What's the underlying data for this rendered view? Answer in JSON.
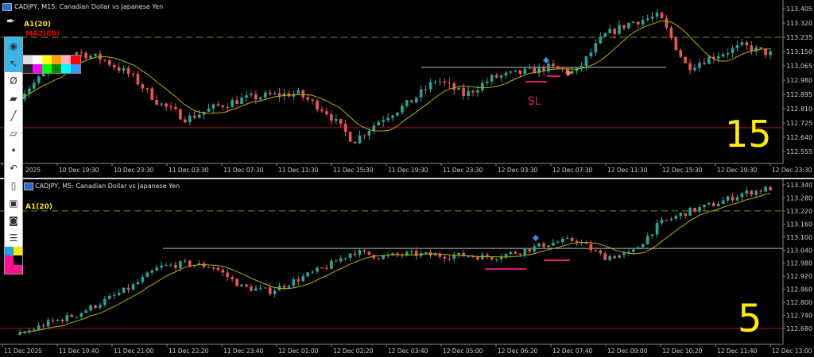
{
  "top_chart": {
    "title": "CADJPY, M15:  Canadian Dollar vs Japanese Yen",
    "indicators": [
      "A1(20)",
      "MA2(80)"
    ],
    "price_ticks": [
      "113.405",
      "113.320",
      "113.235",
      "113.150",
      "113.065",
      "112.980",
      "112.895",
      "112.810",
      "112.725",
      "112.640",
      "112.555"
    ],
    "time_ticks": [
      "2025",
      "10 Dec 19:30",
      "10 Dec 23:30",
      "11 Dec 03:30",
      "11 Dec 07:30",
      "11 Dec 11:30",
      "11 Dec 15:30",
      "11 Dec 19:30",
      "11 Dec 23:30",
      "12 Dec 03:30",
      "12 Dec 07:30",
      "12 Dec 11:30",
      "12 Dec 15:30",
      "12 Dec 19:30",
      "12 Dec 23:30"
    ],
    "annotations": {
      "sl": "SL",
      "timeframe": "15"
    }
  },
  "bottom_chart": {
    "title": "CADJPY, M5:  Canadian Dollar vs Japanese Yen",
    "indicators": [
      "A1(20)"
    ],
    "price_ticks": [
      "113.340",
      "113.280",
      "113.220",
      "113.160",
      "113.100",
      "113.040",
      "112.980",
      "112.920",
      "112.860",
      "112.800",
      "112.740",
      "112.680"
    ],
    "time_ticks": [
      "11 Dec 2025",
      "11 Dec 19:40",
      "11 Dec 21:00",
      "11 Dec 22:20",
      "11 Dec 23:40",
      "12 Dec 01:00",
      "12 Dec 02:20",
      "12 Dec 03:40",
      "12 Dec 05:00",
      "12 Dec 06:20",
      "12 Dec 07:40",
      "12 Dec 09:00",
      "12 Dec 10:20",
      "12 Dec 11:40",
      "12 Dec 13:00"
    ],
    "annotations": {
      "timeframe": "5"
    }
  },
  "toolbar": {
    "icons": [
      "pen-icon",
      "eye-icon",
      "cursor-icon",
      "crossout-icon",
      "eraser-icon",
      "line-icon",
      "rectangle-icon",
      "dot-icon",
      "undo-icon",
      "trash-icon",
      "screen-icon",
      "camera-icon",
      "clipboard-icon"
    ]
  },
  "colors": {
    "bull": "#26a69a",
    "bear": "#ef5350",
    "ma": "#b8b000",
    "dashed": "#8a8a00",
    "support": "#b01010",
    "hline": "#bbbbbb",
    "annotation": "#e0157a",
    "handwriting": "#ffee00"
  },
  "chart_data": [
    {
      "type": "candlestick",
      "symbol": "CADJPY",
      "timeframe": "M15",
      "ylim": [
        112.5,
        113.43
      ],
      "close_path": [
        112.89,
        113.032,
        113.15,
        113.103,
        113.008,
        112.843,
        112.749,
        112.819,
        112.867,
        112.89,
        112.9,
        112.796,
        112.616,
        112.749,
        112.843,
        112.985,
        112.89,
        112.994,
        113.023,
        113.056,
        113.023,
        113.244,
        113.325,
        113.362,
        113.056,
        113.126,
        113.183,
        113.136
      ],
      "levels": {
        "dashed": 113.235,
        "red": 112.697,
        "white": 113.056
      }
    },
    {
      "type": "candlestick",
      "symbol": "CADJPY",
      "timeframe": "M5",
      "ylim": [
        112.64,
        113.36
      ],
      "close_path": [
        112.651,
        112.705,
        112.742,
        112.804,
        112.87,
        112.961,
        112.979,
        112.961,
        112.87,
        112.851,
        112.906,
        112.961,
        113.034,
        113.008,
        113.023,
        113.015,
        113.015,
        113.008,
        113.034,
        113.07,
        113.088,
        113.008,
        113.023,
        113.161,
        113.216,
        113.252,
        113.3,
        113.325
      ],
      "levels": {
        "dashed": 113.22,
        "red": 112.68,
        "white": 113.048
      }
    }
  ]
}
